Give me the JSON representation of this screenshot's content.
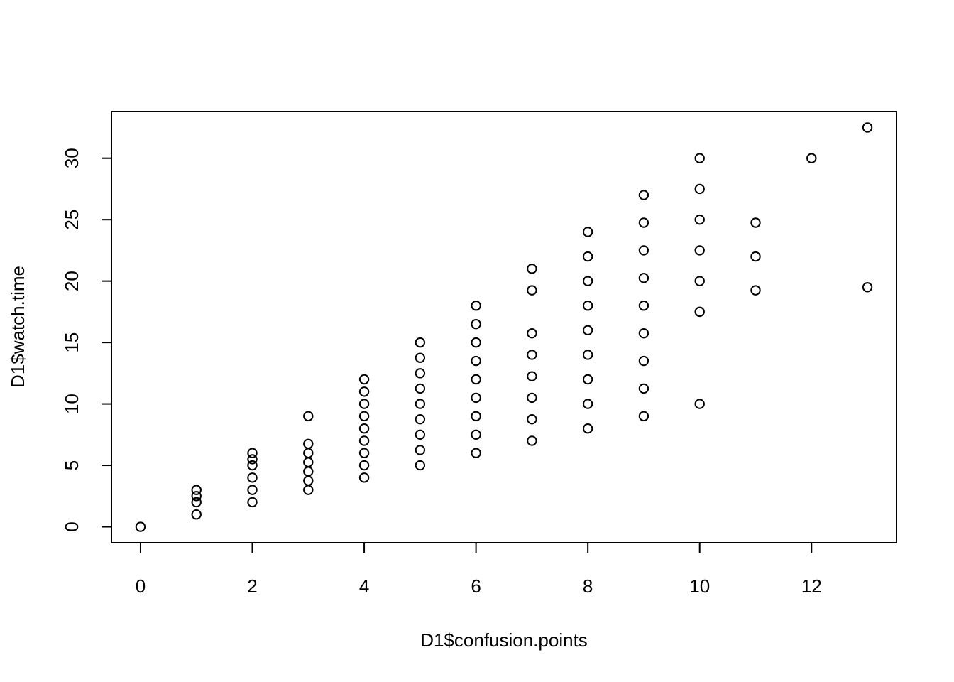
{
  "chart_data": {
    "type": "scatter",
    "title": "",
    "xlabel": "D1$confusion.points",
    "ylabel": "D1$watch.time",
    "xlim": [
      -0.52,
      13.52
    ],
    "ylim": [
      -1.3,
      33.8
    ],
    "xticks": [
      0,
      2,
      4,
      6,
      8,
      10,
      12
    ],
    "yticks": [
      0,
      5,
      10,
      15,
      20,
      25,
      30
    ],
    "xtick_labels": [
      "0",
      "2",
      "4",
      "6",
      "8",
      "10",
      "12"
    ],
    "ytick_labels": [
      "0",
      "5",
      "10",
      "15",
      "20",
      "25",
      "30"
    ],
    "grid": false,
    "marker": "open-circle",
    "marker_color": "#000000",
    "points": [
      [
        0,
        0
      ],
      [
        1,
        1
      ],
      [
        1,
        2
      ],
      [
        1,
        2.5
      ],
      [
        1,
        3
      ],
      [
        2,
        2
      ],
      [
        2,
        3
      ],
      [
        2,
        4
      ],
      [
        2,
        5
      ],
      [
        2,
        5.5
      ],
      [
        2,
        6
      ],
      [
        3,
        3
      ],
      [
        3,
        3.75
      ],
      [
        3,
        4.5
      ],
      [
        3,
        5.25
      ],
      [
        3,
        6
      ],
      [
        3,
        6.75
      ],
      [
        3,
        9
      ],
      [
        4,
        4
      ],
      [
        4,
        5
      ],
      [
        4,
        6
      ],
      [
        4,
        7
      ],
      [
        4,
        8
      ],
      [
        4,
        9
      ],
      [
        4,
        10
      ],
      [
        4,
        11
      ],
      [
        4,
        12
      ],
      [
        5,
        5
      ],
      [
        5,
        6.25
      ],
      [
        5,
        7.5
      ],
      [
        5,
        8.75
      ],
      [
        5,
        10
      ],
      [
        5,
        11.25
      ],
      [
        5,
        12.5
      ],
      [
        5,
        13.75
      ],
      [
        5,
        15
      ],
      [
        6,
        6
      ],
      [
        6,
        7.5
      ],
      [
        6,
        9
      ],
      [
        6,
        10.5
      ],
      [
        6,
        12
      ],
      [
        6,
        13.5
      ],
      [
        6,
        15
      ],
      [
        6,
        16.5
      ],
      [
        6,
        18
      ],
      [
        7,
        7
      ],
      [
        7,
        8.75
      ],
      [
        7,
        10.5
      ],
      [
        7,
        12.25
      ],
      [
        7,
        14
      ],
      [
        7,
        15.75
      ],
      [
        7,
        19.25
      ],
      [
        7,
        21
      ],
      [
        8,
        8
      ],
      [
        8,
        10
      ],
      [
        8,
        12
      ],
      [
        8,
        14
      ],
      [
        8,
        16
      ],
      [
        8,
        18
      ],
      [
        8,
        20
      ],
      [
        8,
        22
      ],
      [
        8,
        24
      ],
      [
        9,
        9
      ],
      [
        9,
        11.25
      ],
      [
        9,
        13.5
      ],
      [
        9,
        15.75
      ],
      [
        9,
        18
      ],
      [
        9,
        20.25
      ],
      [
        9,
        22.5
      ],
      [
        9,
        24.75
      ],
      [
        9,
        27
      ],
      [
        10,
        10
      ],
      [
        10,
        17.5
      ],
      [
        10,
        20
      ],
      [
        10,
        22.5
      ],
      [
        10,
        25
      ],
      [
        10,
        27.5
      ],
      [
        10,
        30
      ],
      [
        11,
        19.25
      ],
      [
        11,
        22
      ],
      [
        11,
        24.75
      ],
      [
        12,
        30
      ],
      [
        13,
        19.5
      ],
      [
        13,
        32.5
      ]
    ]
  }
}
